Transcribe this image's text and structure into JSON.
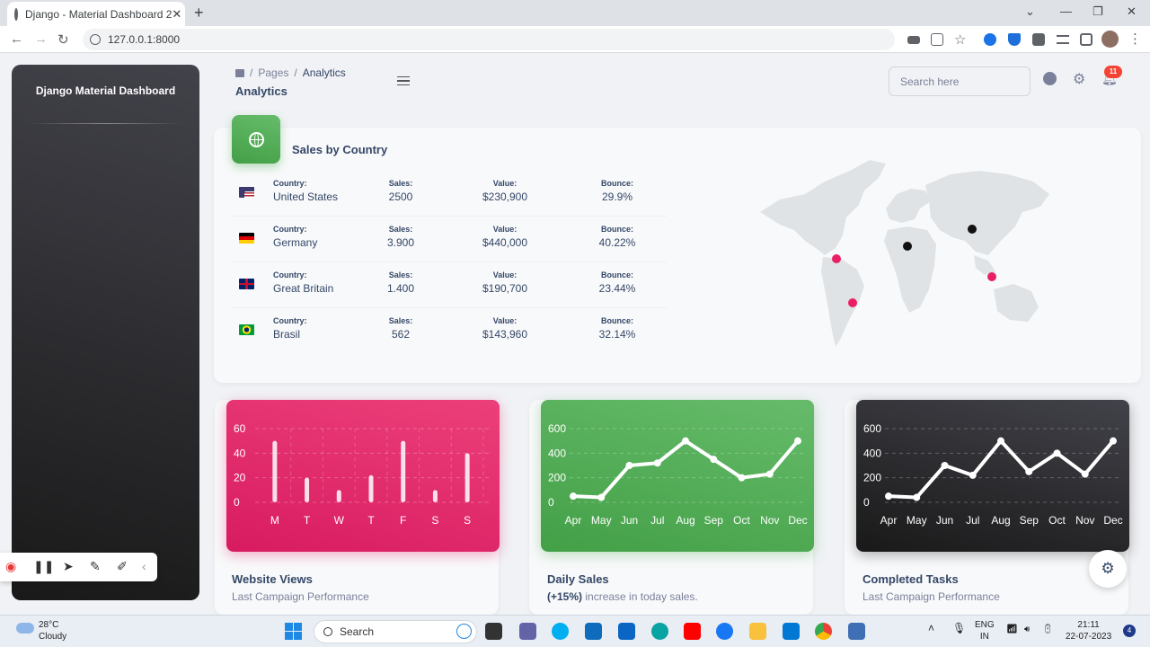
{
  "browser": {
    "tab_title": "Django - Material Dashboard 2",
    "url": "127.0.0.1:8000"
  },
  "sidebar": {
    "brand": "Django Material Dashboard"
  },
  "header": {
    "breadcrumb": [
      "Pages",
      "Analytics"
    ],
    "title": "Analytics",
    "search_placeholder": "Search here",
    "notification_count": "11"
  },
  "sales_by_country": {
    "title": "Sales by Country",
    "labels": {
      "country": "Country:",
      "sales": "Sales:",
      "value": "Value:",
      "bounce": "Bounce:"
    },
    "rows": [
      {
        "country": "United States",
        "sales": "2500",
        "value": "$230,900",
        "bounce": "29.9%",
        "flag": "us-flag-icon"
      },
      {
        "country": "Germany",
        "sales": "3.900",
        "value": "$440,000",
        "bounce": "40.22%",
        "flag": "de-flag-icon"
      },
      {
        "country": "Great Britain",
        "sales": "1.400",
        "value": "$190,700",
        "bounce": "23.44%",
        "flag": "gb-flag-icon"
      },
      {
        "country": "Brasil",
        "sales": "562",
        "value": "$143,960",
        "bounce": "32.14%",
        "flag": "br-flag-icon"
      }
    ]
  },
  "chart_data": [
    {
      "type": "bar",
      "title": "Website Views",
      "subtitle": "Last Campaign Performance",
      "categories": [
        "M",
        "T",
        "W",
        "T",
        "F",
        "S",
        "S"
      ],
      "values": [
        50,
        20,
        10,
        22,
        50,
        10,
        40
      ],
      "yticks": [
        0,
        20,
        40,
        60
      ],
      "ylim": [
        0,
        60
      ],
      "color": "#ec407a"
    },
    {
      "type": "line",
      "title": "Daily Sales",
      "subtitle_bold": "(+15%)",
      "subtitle": " increase in today sales.",
      "categories": [
        "Apr",
        "May",
        "Jun",
        "Jul",
        "Aug",
        "Sep",
        "Oct",
        "Nov",
        "Dec"
      ],
      "values": [
        50,
        40,
        300,
        320,
        500,
        350,
        200,
        230,
        500
      ],
      "yticks": [
        0,
        200,
        400,
        600
      ],
      "ylim": [
        0,
        600
      ],
      "color": "#4caf50"
    },
    {
      "type": "line",
      "title": "Completed Tasks",
      "subtitle": "Last Campaign Performance",
      "categories": [
        "Apr",
        "May",
        "Jun",
        "Jul",
        "Aug",
        "Sep",
        "Oct",
        "Nov",
        "Dec"
      ],
      "values": [
        50,
        40,
        300,
        220,
        500,
        250,
        400,
        230,
        500
      ],
      "yticks": [
        0,
        200,
        400,
        600
      ],
      "ylim": [
        0,
        600
      ],
      "color": "#262626"
    }
  ],
  "taskbar": {
    "temperature": "28°C",
    "weather": "Cloudy",
    "search": "Search",
    "lang1": "ENG",
    "lang2": "IN",
    "time": "21:11",
    "date": "22-07-2023",
    "badge": "4"
  }
}
